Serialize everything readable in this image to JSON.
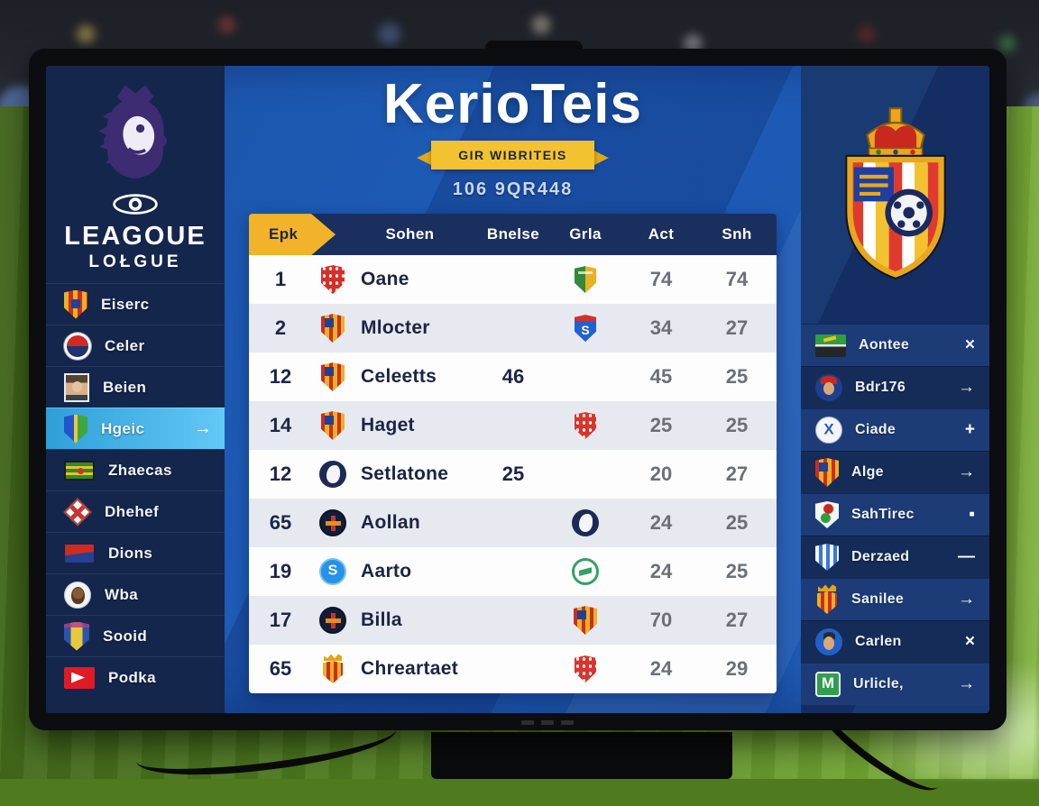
{
  "screen": {
    "title": "KerioTeis",
    "ribbon": "GIR WIBRITEIS",
    "subtitle": "106 9QR448"
  },
  "left_sidebar": {
    "logo_title": "LEAGOUE",
    "logo_subtitle": "LOŁGUE",
    "items": [
      {
        "label": "Eiserc",
        "icon": "crest-spain"
      },
      {
        "label": "Celer",
        "icon": "circle-redblue"
      },
      {
        "label": "Beien",
        "icon": "portrait"
      },
      {
        "label": "Hgeic",
        "icon": "shield-bluegreen",
        "highlighted": true,
        "action": "→"
      },
      {
        "label": "Zhaecas",
        "icon": "flag-greenyellow"
      },
      {
        "label": "Dhehef",
        "icon": "diamond-cross"
      },
      {
        "label": "Dions",
        "icon": "flag-redblue"
      },
      {
        "label": "Wba",
        "icon": "circle-monkey"
      },
      {
        "label": "Sooid",
        "icon": "crest-yellowblue"
      },
      {
        "label": "Podka",
        "icon": "flag-pennant"
      }
    ]
  },
  "table": {
    "headers": {
      "pos": "Epk",
      "team": "Sohen",
      "val": "Bnelse",
      "badge": "Grla",
      "act": "Act",
      "snh": "Snh"
    },
    "rows": [
      {
        "pos": "1",
        "team": "Oane",
        "crest": "crest-red",
        "val": "",
        "badge": "badge-split-greengold",
        "act": "74",
        "snh": "74"
      },
      {
        "pos": "2",
        "team": "Mlocter",
        "crest": "crest-barca",
        "val": "",
        "badge": "shield-s-blue",
        "act": "34",
        "snh": "27"
      },
      {
        "pos": "12",
        "team": "Celeetts",
        "crest": "crest-barca",
        "val": "46",
        "badge": "",
        "act": "45",
        "snh": "25"
      },
      {
        "pos": "14",
        "team": "Haget",
        "crest": "crest-barca",
        "val": "",
        "badge": "badge-red",
        "act": "25",
        "snh": "25"
      },
      {
        "pos": "12",
        "team": "Setlatone",
        "crest": "crest-lion",
        "val": "25",
        "badge": "",
        "act": "20",
        "snh": "27"
      },
      {
        "pos": "65",
        "team": "Aollan",
        "crest": "circle-cross-dark",
        "val": "",
        "badge": "crest-lion",
        "act": "24",
        "snh": "25"
      },
      {
        "pos": "19",
        "team": "Aarto",
        "crest": "circle-s-blue",
        "val": "",
        "badge": "badge-green-ring",
        "act": "24",
        "snh": "25"
      },
      {
        "pos": "17",
        "team": "Billa",
        "crest": "circle-cross-dark",
        "val": "",
        "badge": "crest-barca",
        "act": "70",
        "snh": "27"
      },
      {
        "pos": "65",
        "team": "Chreartaet",
        "crest": "crest-crown",
        "val": "",
        "badge": "badge-red",
        "act": "24",
        "snh": "29"
      }
    ]
  },
  "right_panel": {
    "items": [
      {
        "label": "Aontee",
        "icon": "flag-green-dark",
        "action": "×",
        "action_name": "close"
      },
      {
        "label": "Bdr176",
        "icon": "avatar-redcap",
        "action": "→",
        "action_name": "arrow-right"
      },
      {
        "label": "Ciade",
        "icon": "circle-x-white",
        "action": "+",
        "action_name": "add"
      },
      {
        "label": "Alge",
        "icon": "crest-barca",
        "action": "→",
        "action_name": "arrow-right"
      },
      {
        "label": "SahTirec",
        "icon": "shield-white-red",
        "action": "▪",
        "action_name": "square"
      },
      {
        "label": "Derzaed",
        "icon": "shield-striped",
        "action": "—",
        "action_name": "minus"
      },
      {
        "label": "Sanilee",
        "icon": "crest-crown",
        "action": "→",
        "action_name": "arrow-right"
      },
      {
        "label": "Carlen",
        "icon": "avatar-blue",
        "action": "×",
        "action_name": "close"
      },
      {
        "label": "Urlicle,",
        "icon": "square-m-green",
        "action": "→",
        "action_name": "arrow-right"
      }
    ]
  },
  "colors": {
    "accent_yellow": "#f2b32b",
    "highlight_blue": "#3db3e8",
    "screen_blue": "#1e5cb8",
    "sidebar_navy": "#14264c",
    "header_navy": "#1b2f5f",
    "right_panel_navy": "#1a3a74"
  }
}
